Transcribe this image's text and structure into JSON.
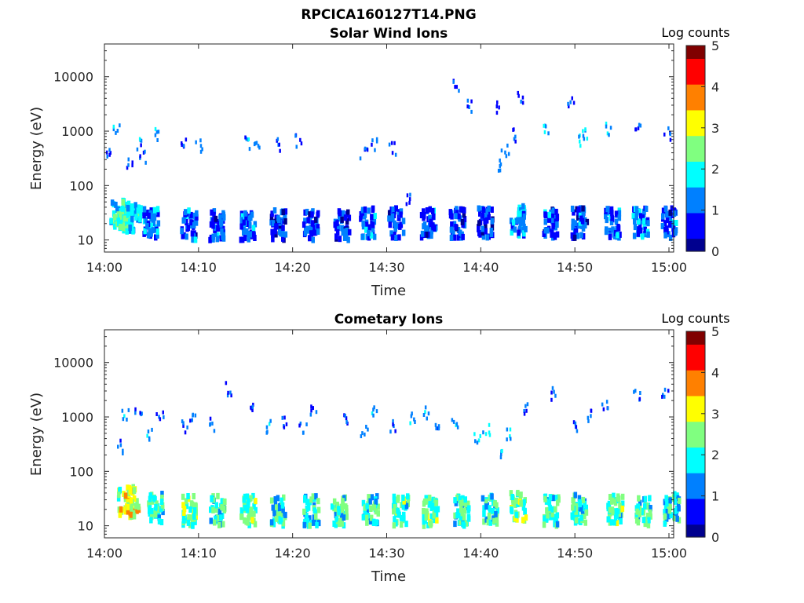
{
  "figure_title": "RPCICA160127T14.PNG",
  "colormap": [
    "#00008f",
    "#0000ff",
    "#0080ff",
    "#00ffff",
    "#80ff80",
    "#ffff00",
    "#ff8000",
    "#ff0000",
    "#800000"
  ],
  "chart_data": [
    {
      "type": "heatmap",
      "title": "Solar Wind Ions",
      "xlabel": "Time",
      "ylabel": "Energy (eV)",
      "xlim": [
        "14:00",
        "15:00"
      ],
      "xticks": [
        "14:00",
        "14:10",
        "14:20",
        "14:30",
        "14:40",
        "14:50",
        "15:00"
      ],
      "yscale": "log",
      "ylim": [
        6,
        40000
      ],
      "yticks": [
        "10",
        "100",
        "1000",
        "10000"
      ],
      "colorbar": {
        "label": "Log counts",
        "range": [
          0,
          5
        ],
        "ticks": [
          "0",
          "1",
          "2",
          "3",
          "4",
          "5"
        ]
      },
      "bursts": [
        {
          "t": 1.0,
          "e": 30,
          "c": 1.8
        },
        {
          "t": 1.8,
          "e": 30,
          "c": 2.0
        },
        {
          "t": 2.6,
          "e": 28,
          "c": 1.6
        },
        {
          "t": 4.5,
          "e": 22,
          "c": 1.2
        },
        {
          "t": 8.5,
          "e": 20,
          "c": 1.0
        },
        {
          "t": 11.5,
          "e": 20,
          "c": 0.9
        },
        {
          "t": 14.8,
          "e": 20,
          "c": 1.0
        },
        {
          "t": 18.0,
          "e": 20,
          "c": 0.8
        },
        {
          "t": 21.5,
          "e": 20,
          "c": 0.9
        },
        {
          "t": 24.8,
          "e": 20,
          "c": 0.8
        },
        {
          "t": 27.5,
          "e": 22,
          "c": 1.0
        },
        {
          "t": 30.5,
          "e": 22,
          "c": 0.9
        },
        {
          "t": 34.0,
          "e": 22,
          "c": 1.0
        },
        {
          "t": 37.0,
          "e": 22,
          "c": 0.9
        },
        {
          "t": 40.0,
          "e": 22,
          "c": 0.8
        },
        {
          "t": 43.5,
          "e": 24,
          "c": 1.3
        },
        {
          "t": 47.0,
          "e": 22,
          "c": 0.9
        },
        {
          "t": 50.0,
          "e": 22,
          "c": 0.9
        },
        {
          "t": 53.5,
          "e": 22,
          "c": 1.0
        },
        {
          "t": 56.5,
          "e": 22,
          "c": 1.1
        },
        {
          "t": 59.5,
          "e": 22,
          "c": 0.9
        }
      ],
      "sparse": [
        {
          "t": 0.2,
          "e": 400,
          "c": 1.0
        },
        {
          "t": 1.2,
          "e": 1100,
          "c": 1.6
        },
        {
          "t": 2.5,
          "e": 250,
          "c": 0.9
        },
        {
          "t": 3.5,
          "e": 600,
          "c": 1.2
        },
        {
          "t": 4.0,
          "e": 350,
          "c": 1.1
        },
        {
          "t": 5.5,
          "e": 950,
          "c": 1.5
        },
        {
          "t": 8.2,
          "e": 600,
          "c": 1.0
        },
        {
          "t": 10.0,
          "e": 600,
          "c": 1.0
        },
        {
          "t": 15.0,
          "e": 650,
          "c": 1.2
        },
        {
          "t": 16.2,
          "e": 700,
          "c": 1.1
        },
        {
          "t": 18.5,
          "e": 620,
          "c": 1.0
        },
        {
          "t": 20.5,
          "e": 700,
          "c": 0.9
        },
        {
          "t": 27.5,
          "e": 400,
          "c": 1.1
        },
        {
          "t": 28.5,
          "e": 600,
          "c": 1.2
        },
        {
          "t": 30.5,
          "e": 500,
          "c": 1.0
        },
        {
          "t": 32.0,
          "e": 60,
          "c": 0.8
        },
        {
          "t": 37.2,
          "e": 7000,
          "c": 0.8
        },
        {
          "t": 38.8,
          "e": 3200,
          "c": 0.8
        },
        {
          "t": 41.5,
          "e": 2800,
          "c": 0.8
        },
        {
          "t": 42.0,
          "e": 250,
          "c": 1.3
        },
        {
          "t": 42.5,
          "e": 500,
          "c": 1.3
        },
        {
          "t": 43.5,
          "e": 900,
          "c": 1.2
        },
        {
          "t": 44.2,
          "e": 4800,
          "c": 0.8
        },
        {
          "t": 46.8,
          "e": 1300,
          "c": 1.4
        },
        {
          "t": 49.5,
          "e": 3300,
          "c": 0.8
        },
        {
          "t": 50.5,
          "e": 700,
          "c": 1.6
        },
        {
          "t": 51.0,
          "e": 1000,
          "c": 1.5
        },
        {
          "t": 53.5,
          "e": 1200,
          "c": 1.6
        },
        {
          "t": 56.5,
          "e": 1400,
          "c": 1.0
        },
        {
          "t": 59.8,
          "e": 950,
          "c": 1.0
        }
      ]
    },
    {
      "type": "heatmap",
      "title": "Cometary Ions",
      "xlabel": "Time",
      "ylabel": "Energy (eV)",
      "xlim": [
        "14:00",
        "15:00"
      ],
      "xticks": [
        "14:00",
        "14:10",
        "14:20",
        "14:30",
        "14:40",
        "14:50",
        "15:00"
      ],
      "yscale": "log",
      "ylim": [
        6,
        40000
      ],
      "yticks": [
        "10",
        "100",
        "1000",
        "10000"
      ],
      "colorbar": {
        "label": "Log counts",
        "range": [
          0,
          5
        ],
        "ticks": [
          "0",
          "1",
          "2",
          "3",
          "4",
          "5"
        ]
      },
      "bursts": [
        {
          "t": 1.8,
          "e": 28,
          "c": 2.8
        },
        {
          "t": 2.5,
          "e": 30,
          "c": 3.0
        },
        {
          "t": 5.0,
          "e": 22,
          "c": 2.0
        },
        {
          "t": 8.5,
          "e": 20,
          "c": 2.3
        },
        {
          "t": 11.5,
          "e": 20,
          "c": 2.0
        },
        {
          "t": 14.8,
          "e": 20,
          "c": 2.2
        },
        {
          "t": 18.0,
          "e": 20,
          "c": 2.0
        },
        {
          "t": 21.5,
          "e": 20,
          "c": 1.9
        },
        {
          "t": 24.5,
          "e": 20,
          "c": 2.1
        },
        {
          "t": 27.8,
          "e": 22,
          "c": 2.0
        },
        {
          "t": 31.0,
          "e": 20,
          "c": 2.2
        },
        {
          "t": 34.2,
          "e": 20,
          "c": 2.3
        },
        {
          "t": 37.5,
          "e": 20,
          "c": 2.0
        },
        {
          "t": 40.5,
          "e": 22,
          "c": 2.0
        },
        {
          "t": 43.5,
          "e": 24,
          "c": 2.3
        },
        {
          "t": 47.0,
          "e": 20,
          "c": 2.0
        },
        {
          "t": 50.0,
          "e": 22,
          "c": 1.9
        },
        {
          "t": 53.8,
          "e": 22,
          "c": 2.2
        },
        {
          "t": 56.8,
          "e": 20,
          "c": 2.1
        },
        {
          "t": 59.8,
          "e": 22,
          "c": 1.9
        }
      ],
      "sparse": [
        {
          "t": 1.5,
          "e": 300,
          "c": 1.2
        },
        {
          "t": 2.2,
          "e": 1100,
          "c": 1.3
        },
        {
          "t": 3.5,
          "e": 1400,
          "c": 1.0
        },
        {
          "t": 4.8,
          "e": 500,
          "c": 1.3
        },
        {
          "t": 5.8,
          "e": 1100,
          "c": 1.0
        },
        {
          "t": 8.5,
          "e": 700,
          "c": 1.1
        },
        {
          "t": 9.2,
          "e": 1200,
          "c": 1.2
        },
        {
          "t": 11.5,
          "e": 800,
          "c": 1.0
        },
        {
          "t": 13.0,
          "e": 3500,
          "c": 1.0
        },
        {
          "t": 15.8,
          "e": 1400,
          "c": 1.0
        },
        {
          "t": 17.5,
          "e": 700,
          "c": 1.3
        },
        {
          "t": 19.2,
          "e": 800,
          "c": 1.2
        },
        {
          "t": 21.0,
          "e": 700,
          "c": 1.3
        },
        {
          "t": 22.2,
          "e": 1300,
          "c": 1.0
        },
        {
          "t": 25.5,
          "e": 900,
          "c": 1.0
        },
        {
          "t": 27.5,
          "e": 600,
          "c": 1.3
        },
        {
          "t": 28.5,
          "e": 1400,
          "c": 1.2
        },
        {
          "t": 30.5,
          "e": 700,
          "c": 1.2
        },
        {
          "t": 32.5,
          "e": 1100,
          "c": 1.3
        },
        {
          "t": 34.0,
          "e": 1300,
          "c": 1.4
        },
        {
          "t": 35.5,
          "e": 800,
          "c": 1.3
        },
        {
          "t": 37.2,
          "e": 900,
          "c": 1.3
        },
        {
          "t": 39.5,
          "e": 400,
          "c": 1.5
        },
        {
          "t": 40.5,
          "e": 600,
          "c": 1.8
        },
        {
          "t": 42.2,
          "e": 200,
          "c": 1.3
        },
        {
          "t": 43.0,
          "e": 500,
          "c": 1.6
        },
        {
          "t": 44.5,
          "e": 1600,
          "c": 1.1
        },
        {
          "t": 47.5,
          "e": 2800,
          "c": 1.0
        },
        {
          "t": 50.0,
          "e": 700,
          "c": 0.8
        },
        {
          "t": 51.5,
          "e": 1100,
          "c": 1.0
        },
        {
          "t": 53.2,
          "e": 1600,
          "c": 0.9
        },
        {
          "t": 56.5,
          "e": 2500,
          "c": 1.0
        },
        {
          "t": 59.5,
          "e": 3000,
          "c": 1.0
        }
      ]
    }
  ]
}
